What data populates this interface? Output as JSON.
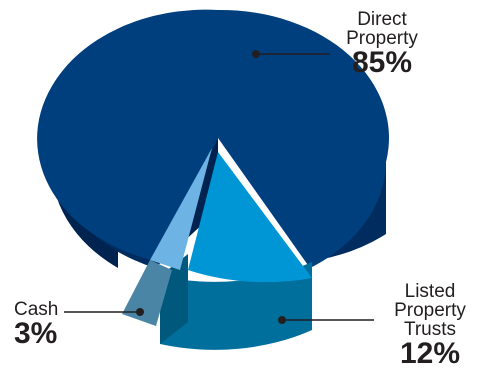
{
  "chart_data": {
    "type": "pie",
    "style": "3d-exploded",
    "legend": "none",
    "slices": [
      {
        "name_lines": [
          "Direct",
          "Property"
        ],
        "percent_label": "85%",
        "value": 85,
        "colors": {
          "top": "#003f7d",
          "side": "#002c5f",
          "dark": "#00244f"
        }
      },
      {
        "name_lines": [
          "Listed",
          "Property",
          "Trusts"
        ],
        "percent_label": "12%",
        "value": 12,
        "colors": {
          "top": "#0096d6",
          "side": "#006f9c",
          "dark": "#00587d"
        }
      },
      {
        "name_lines": [
          "Cash"
        ],
        "percent_label": "3%",
        "value": 3,
        "colors": {
          "top": "#6db3e4",
          "side": "#4a85a6",
          "dark": "#3d6f8e"
        }
      }
    ]
  }
}
